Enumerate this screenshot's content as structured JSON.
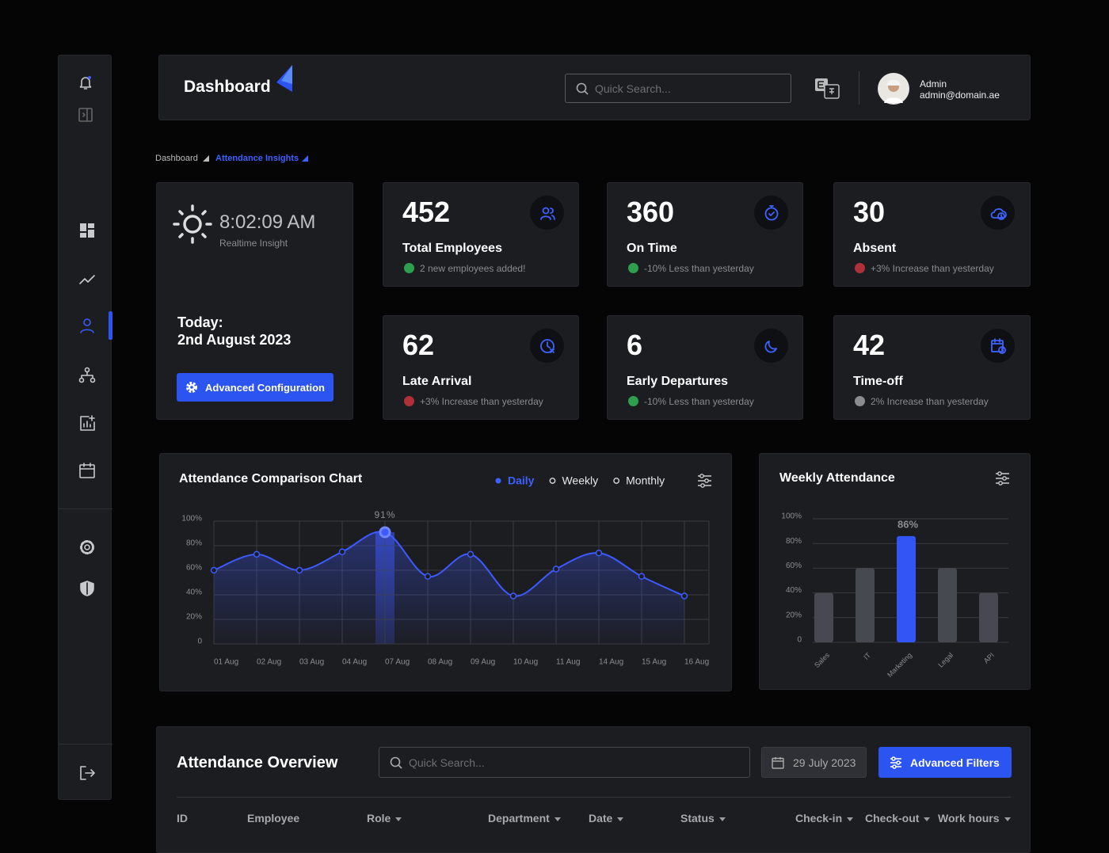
{
  "header": {
    "title": "Dashboard",
    "search_placeholder": "Quick Search...",
    "user_name": "Admin",
    "user_email": "admin@domain.ae"
  },
  "breadcrumb": [
    "Dashboard",
    "Attendance Insights"
  ],
  "clock": {
    "time": "8:02:09 AM",
    "subtitle": "Realtime Insight",
    "today_label": "Today:",
    "date": "2nd August 2023",
    "button": "Advanced Configuration"
  },
  "stats": [
    {
      "value": 452,
      "label": "Total Employees",
      "note": "2 new employees added!",
      "note_color": "#2f9e4f"
    },
    {
      "value": 360,
      "label": "On Time",
      "note": "-10% Less than yesterday",
      "note_color": "#2f9e4f"
    },
    {
      "value": 30,
      "label": "Absent",
      "note": "+3% Increase than yesterday",
      "note_color": "#b0303a"
    },
    {
      "value": 62,
      "label": "Late Arrival",
      "note": "+3% Increase than yesterday",
      "note_color": "#b0303a"
    },
    {
      "value": 6,
      "label": "Early Departures",
      "note": "-10% Less than yesterday",
      "note_color": "#2f9e4f"
    },
    {
      "value": 42,
      "label": "Time-off",
      "note": "2% Increase than yesterday",
      "note_color": "#8a8c92"
    }
  ],
  "chart_data": [
    {
      "type": "line",
      "title": "Attendance Comparison Chart",
      "periods": [
        "Daily",
        "Weekly",
        "Monthly"
      ],
      "selected_period": "Daily",
      "categories": [
        "01 Aug",
        "02 Aug",
        "03 Aug",
        "04 Aug",
        "07 Aug",
        "08 Aug",
        "09 Aug",
        "10 Aug",
        "11 Aug",
        "14 Aug",
        "15 Aug",
        "16 Aug"
      ],
      "values": [
        60,
        73,
        60,
        75,
        91,
        55,
        73,
        39,
        61,
        74,
        55,
        39
      ],
      "value_labels": [
        null,
        null,
        null,
        null,
        "91%",
        null,
        null,
        null,
        null,
        null,
        null,
        null
      ],
      "color": "#3d5afe",
      "ylim": [
        0,
        100
      ],
      "yticks": [
        0,
        {
          "value": 20,
          "label": "20%"
        },
        {
          "value": 40,
          "label": "40%"
        },
        {
          "value": 60,
          "label": "60%"
        },
        {
          "value": 80,
          "label": "80%"
        },
        {
          "value": 100,
          "label": "100%"
        }
      ],
      "grid": true
    },
    {
      "type": "bar",
      "title": "Weekly Attendance",
      "categories": [
        "Sales",
        "IT",
        "Marketing",
        "Legal",
        "API"
      ],
      "values": [
        40,
        60,
        86,
        60,
        40
      ],
      "value_labels": [
        null,
        null,
        "86%",
        null,
        null
      ],
      "colors": [
        "#46494f",
        "#46494f",
        "#3355f5",
        "#46494f",
        "#46494f"
      ],
      "ylim": [
        0,
        100
      ],
      "yticks": [
        0,
        {
          "value": 20,
          "label": "20%"
        },
        {
          "value": 40,
          "label": "40%"
        },
        {
          "value": 60,
          "label": "60%"
        },
        {
          "value": 80,
          "label": "80%"
        },
        {
          "value": 100,
          "label": "100%"
        }
      ],
      "grid": true
    }
  ],
  "table": {
    "title": "Attendance Overview",
    "search_placeholder": "Quick Search...",
    "date": "29 July 2023",
    "button": "Advanced Filters",
    "columns": [
      "ID",
      "Employee",
      "Role",
      "Department",
      "Date",
      "Status",
      "Check-in",
      "Check-out",
      "Work hours"
    ]
  }
}
